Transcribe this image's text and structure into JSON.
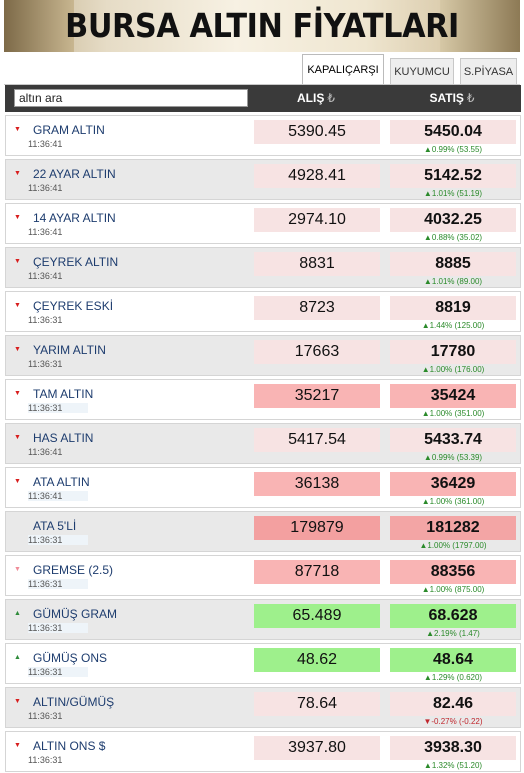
{
  "banner": {
    "title": "BURSA ALTIN FİYATLARI"
  },
  "tabs": [
    {
      "label": "KAPALIÇARŞI",
      "active": true
    },
    {
      "label": "KUYUMCU",
      "active": false
    },
    {
      "label": "S.PİYASA",
      "active": false
    }
  ],
  "search": {
    "value": "altın ara"
  },
  "columns": {
    "buy": "ALIŞ",
    "sell": "SATIŞ",
    "currency_symbol": "₺"
  },
  "colors": {
    "header_bg": "#3a3a3a",
    "name_text": "#1d3c6e",
    "up_green": "#2a8a2a",
    "down_red": "#c0262d",
    "arrow_red": "#d81e1e",
    "arrow_green": "#2e8b3a",
    "arrow_pink": "#f08c98"
  },
  "rows": [
    {
      "name": "GRAM ALTIN",
      "time": "11:36:41",
      "buy": "5390.45",
      "sell": "5450.04",
      "change": "▲0.99% (53.55)",
      "dir": "up",
      "arrow": "down-red",
      "shade": "light"
    },
    {
      "name": "22 AYAR ALTIN",
      "time": "11:36:41",
      "buy": "4928.41",
      "sell": "5142.52",
      "change": "▲1.01% (51.19)",
      "dir": "up",
      "arrow": "down-red",
      "shade": "light"
    },
    {
      "name": "14 AYAR ALTIN",
      "time": "11:36:41",
      "buy": "2974.10",
      "sell": "4032.25",
      "change": "▲0.88% (35.02)",
      "dir": "up",
      "arrow": "down-red",
      "shade": "light"
    },
    {
      "name": "ÇEYREK ALTIN",
      "time": "11:36:41",
      "buy": "8831",
      "sell": "8885",
      "change": "▲1.01% (89.00)",
      "dir": "up",
      "arrow": "down-red",
      "shade": "light"
    },
    {
      "name": "ÇEYREK ESKİ",
      "time": "11:36:31",
      "buy": "8723",
      "sell": "8819",
      "change": "▲1.44% (125.00)",
      "dir": "up",
      "arrow": "down-red",
      "shade": "light"
    },
    {
      "name": "YARIM ALTIN",
      "time": "11:36:31",
      "buy": "17663",
      "sell": "17780",
      "change": "▲1.00% (176.00)",
      "dir": "up",
      "arrow": "down-red",
      "shade": "light"
    },
    {
      "name": "TAM ALTIN",
      "time": "11:36:31",
      "buy": "35217",
      "sell": "35424",
      "change": "▲1.00% (351.00)",
      "dir": "up",
      "arrow": "down-red",
      "shade": "strong"
    },
    {
      "name": "HAS ALTIN",
      "time": "11:36:41",
      "buy": "5417.54",
      "sell": "5433.74",
      "change": "▲0.99% (53.39)",
      "dir": "up",
      "arrow": "down-red",
      "shade": "light"
    },
    {
      "name": "ATA ALTIN",
      "time": "11:36:41",
      "buy": "36138",
      "sell": "36429",
      "change": "▲1.00% (361.00)",
      "dir": "up",
      "arrow": "down-red",
      "shade": "strong"
    },
    {
      "name": "ATA 5'Lİ",
      "time": "11:36:31",
      "buy": "179879",
      "sell": "181282",
      "change": "▲1.00% (1797.00)",
      "dir": "up",
      "arrow": "none",
      "shade": "stronger"
    },
    {
      "name": "GREMSE (2.5)",
      "time": "11:36:31",
      "buy": "87718",
      "sell": "88356",
      "change": "▲1.00% (875.00)",
      "dir": "up",
      "arrow": "down-pink",
      "shade": "strong"
    },
    {
      "name": "GÜMÜŞ GRAM",
      "time": "11:36:31",
      "buy": "65.489",
      "sell": "68.628",
      "change": "▲2.19% (1.47)",
      "dir": "up",
      "arrow": "up-green",
      "shade": "green"
    },
    {
      "name": "GÜMÜŞ ONS",
      "time": "11:36:31",
      "buy": "48.62",
      "sell": "48.64",
      "change": "▲1.29% (0.620)",
      "dir": "up",
      "arrow": "up-green",
      "shade": "green"
    },
    {
      "name": "ALTIN/GÜMÜŞ",
      "time": "11:36:31",
      "buy": "78.64",
      "sell": "82.46",
      "change": "▼-0.27% (-0.22)",
      "dir": "down",
      "arrow": "down-red",
      "shade": "light"
    },
    {
      "name": "ALTIN ONS $",
      "time": "11:36:31",
      "buy": "3937.80",
      "sell": "3938.30",
      "change": "▲1.32% (51.20)",
      "dir": "up",
      "arrow": "down-red",
      "shade": "light"
    }
  ]
}
